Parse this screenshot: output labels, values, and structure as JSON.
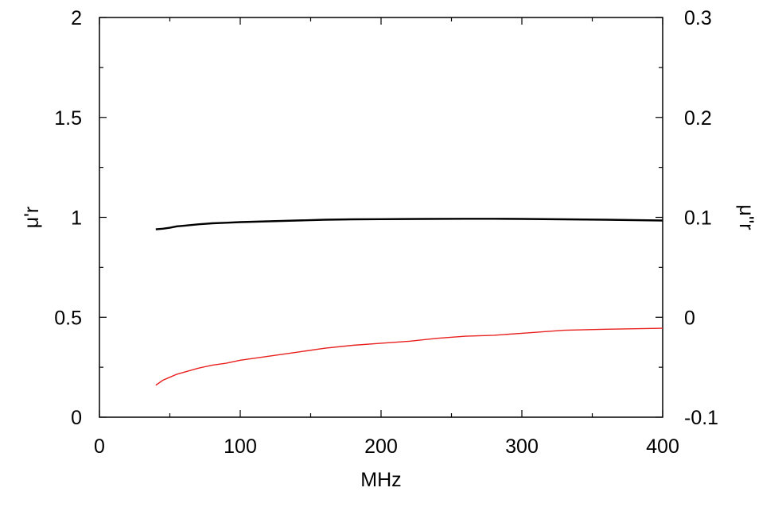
{
  "chart_data": {
    "type": "line",
    "title": "",
    "xlabel": "MHz",
    "ylabel_left": "μ'r",
    "ylabel_right": "μ''r",
    "xlim": [
      0,
      400
    ],
    "ylim_left": [
      0,
      2
    ],
    "ylim_right": [
      -0.1,
      0.3
    ],
    "x_ticks": [
      "0",
      "100",
      "200",
      "300",
      "400"
    ],
    "y_left_ticks": [
      "0",
      "0.5",
      "1",
      "1.5",
      "2"
    ],
    "y_right_ticks": [
      "-0.1",
      "0",
      "0.1",
      "0.2",
      "0.3"
    ],
    "grid": false,
    "legend": "none",
    "series": [
      {
        "axis": "left",
        "color": "#000000",
        "x": [
          40,
          45,
          50,
          55,
          60,
          70,
          80,
          90,
          100,
          120,
          140,
          160,
          180,
          200,
          230,
          260,
          280,
          300,
          330,
          360,
          400
        ],
        "y": [
          0.94,
          0.943,
          0.948,
          0.955,
          0.958,
          0.965,
          0.97,
          0.973,
          0.976,
          0.98,
          0.984,
          0.988,
          0.99,
          0.991,
          0.992,
          0.993,
          0.993,
          0.992,
          0.99,
          0.988,
          0.984
        ]
      },
      {
        "axis": "right",
        "color": "#e8201e",
        "x": [
          40,
          45,
          50,
          55,
          60,
          70,
          80,
          90,
          100,
          120,
          140,
          160,
          180,
          200,
          220,
          240,
          260,
          280,
          300,
          330,
          360,
          400
        ],
        "y": [
          -0.068,
          -0.063,
          -0.06,
          -0.057,
          -0.055,
          -0.051,
          -0.048,
          -0.046,
          -0.043,
          -0.039,
          -0.035,
          -0.031,
          -0.028,
          -0.026,
          -0.024,
          -0.021,
          -0.019,
          -0.018,
          -0.016,
          -0.013,
          -0.012,
          -0.011
        ]
      }
    ]
  }
}
